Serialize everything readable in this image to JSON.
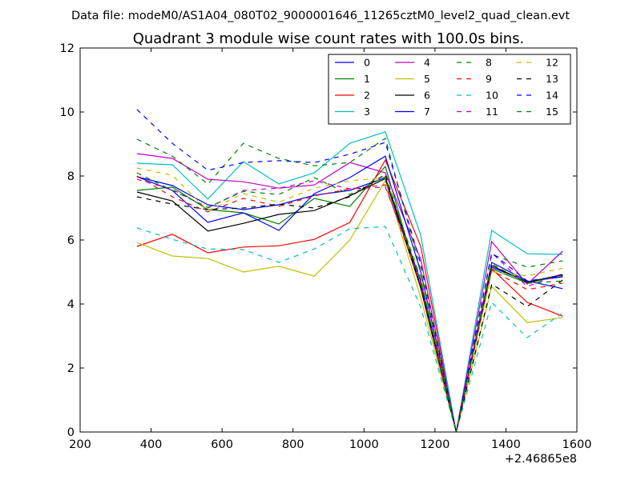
{
  "figure": {
    "suptitle": "Data file: modeM0/AS1A04_080T02_9000001646_11265cztM0_level2_quad_clean.evt"
  },
  "chart_data": {
    "type": "line",
    "title": "Quadrant 3 module wise count rates with 100.0s bins.",
    "xlabel": "",
    "ylabel": "",
    "x_offset_label": "+2.46865e8",
    "xlim": [
      200,
      1600
    ],
    "ylim": [
      0,
      12
    ],
    "xticks": [
      200,
      400,
      600,
      800,
      1000,
      1200,
      1400,
      1600
    ],
    "xtick_labels": [
      "200",
      "400",
      "600",
      "800",
      "1000",
      "1200",
      "1400",
      "1600"
    ],
    "yticks": [
      0,
      2,
      4,
      6,
      8,
      10,
      12
    ],
    "ytick_labels": [
      "0",
      "2",
      "4",
      "6",
      "8",
      "10",
      "12"
    ],
    "grid": false,
    "legend_placement": "top-right",
    "legend_ncol": 4,
    "x": [
      360,
      460,
      560,
      660,
      760,
      860,
      960,
      1060,
      1160,
      1260,
      1360,
      1460,
      1560
    ],
    "series": [
      {
        "name": "0",
        "color": "#0000ff",
        "style": "solid",
        "values": [
          7.98,
          7.7,
          7.1,
          6.95,
          7.1,
          7.4,
          7.55,
          7.95,
          4.7,
          0.0,
          5.15,
          4.7,
          4.85
        ]
      },
      {
        "name": "1",
        "color": "#008000",
        "style": "solid",
        "values": [
          7.55,
          7.65,
          6.95,
          6.85,
          6.5,
          7.3,
          7.05,
          8.3,
          4.5,
          0.0,
          5.1,
          4.65,
          4.9
        ]
      },
      {
        "name": "2",
        "color": "#ff0000",
        "style": "solid",
        "values": [
          5.8,
          6.18,
          5.6,
          5.78,
          5.82,
          6.02,
          6.55,
          8.5,
          5.8,
          0.0,
          5.1,
          4.05,
          3.62
        ]
      },
      {
        "name": "3",
        "color": "#00bfbf",
        "style": "solid",
        "values": [
          8.4,
          8.35,
          7.28,
          8.45,
          7.75,
          8.1,
          9.02,
          9.38,
          6.15,
          0.0,
          6.3,
          5.57,
          5.55
        ]
      },
      {
        "name": "4",
        "color": "#bf00bf",
        "style": "solid",
        "values": [
          8.7,
          8.55,
          7.9,
          7.82,
          7.62,
          7.72,
          8.42,
          8.1,
          5.4,
          0.0,
          5.95,
          4.62,
          5.65
        ]
      },
      {
        "name": "5",
        "color": "#bfbf00",
        "style": "solid",
        "values": [
          5.92,
          5.5,
          5.42,
          5.0,
          5.18,
          4.87,
          6.0,
          7.85,
          4.2,
          0.0,
          4.55,
          3.42,
          3.58
        ]
      },
      {
        "name": "6",
        "color": "#000000",
        "style": "solid",
        "values": [
          7.5,
          7.22,
          6.28,
          6.52,
          6.8,
          6.92,
          7.38,
          7.92,
          4.5,
          0.0,
          5.2,
          4.68,
          4.92
        ]
      },
      {
        "name": "7",
        "color": "#0000ff",
        "style": "solid",
        "values": [
          7.98,
          7.55,
          6.55,
          6.85,
          6.3,
          7.45,
          7.95,
          8.62,
          5.0,
          0.0,
          5.3,
          4.72,
          4.48
        ]
      },
      {
        "name": "8",
        "color": "#008000",
        "style": "dashed",
        "values": [
          9.15,
          8.62,
          7.75,
          9.02,
          8.55,
          8.32,
          8.42,
          9.18,
          5.05,
          0.0,
          5.55,
          5.15,
          5.35
        ]
      },
      {
        "name": "9",
        "color": "#ff0000",
        "style": "dashed",
        "values": [
          8.0,
          7.35,
          6.88,
          7.3,
          7.05,
          7.38,
          7.6,
          7.72,
          4.6,
          0.0,
          5.05,
          4.45,
          4.65
        ]
      },
      {
        "name": "10",
        "color": "#00bfbf",
        "style": "dashed",
        "values": [
          6.38,
          6.02,
          5.72,
          5.7,
          5.3,
          5.72,
          6.35,
          6.42,
          3.9,
          0.0,
          4.05,
          2.95,
          3.72
        ]
      },
      {
        "name": "11",
        "color": "#bf00bf",
        "style": "dashed",
        "values": [
          7.9,
          7.58,
          7.0,
          7.55,
          7.62,
          7.85,
          7.6,
          7.65,
          4.8,
          0.0,
          5.6,
          4.55,
          4.95
        ]
      },
      {
        "name": "12",
        "color": "#bfbf00",
        "style": "dashed",
        "values": [
          8.25,
          8.02,
          6.92,
          7.45,
          7.18,
          7.62,
          7.85,
          7.95,
          4.85,
          0.0,
          5.0,
          4.88,
          5.12
        ]
      },
      {
        "name": "13",
        "color": "#000000",
        "style": "dashed",
        "values": [
          7.35,
          7.12,
          6.95,
          7.0,
          7.12,
          7.0,
          7.35,
          8.05,
          4.55,
          0.0,
          4.62,
          3.92,
          4.75
        ]
      },
      {
        "name": "14",
        "color": "#0000ff",
        "style": "dashed",
        "values": [
          10.08,
          9.02,
          8.18,
          8.42,
          8.48,
          8.42,
          8.68,
          9.05,
          5.25,
          0.0,
          5.6,
          4.72,
          4.88
        ]
      },
      {
        "name": "15",
        "color": "#008000",
        "style": "dashed",
        "values": [
          8.1,
          7.55,
          7.02,
          7.52,
          7.42,
          7.95,
          7.42,
          7.98,
          4.75,
          0.0,
          5.25,
          4.65,
          4.72
        ]
      }
    ]
  }
}
